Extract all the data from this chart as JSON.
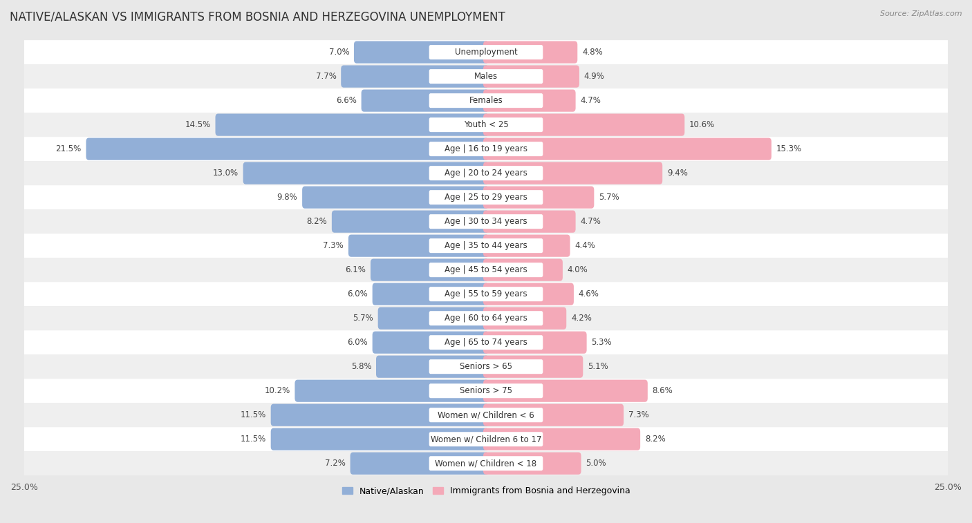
{
  "title": "NATIVE/ALASKAN VS IMMIGRANTS FROM BOSNIA AND HERZEGOVINA UNEMPLOYMENT",
  "source": "Source: ZipAtlas.com",
  "categories": [
    "Unemployment",
    "Males",
    "Females",
    "Youth < 25",
    "Age | 16 to 19 years",
    "Age | 20 to 24 years",
    "Age | 25 to 29 years",
    "Age | 30 to 34 years",
    "Age | 35 to 44 years",
    "Age | 45 to 54 years",
    "Age | 55 to 59 years",
    "Age | 60 to 64 years",
    "Age | 65 to 74 years",
    "Seniors > 65",
    "Seniors > 75",
    "Women w/ Children < 6",
    "Women w/ Children 6 to 17",
    "Women w/ Children < 18"
  ],
  "native_values": [
    7.0,
    7.7,
    6.6,
    14.5,
    21.5,
    13.0,
    9.8,
    8.2,
    7.3,
    6.1,
    6.0,
    5.7,
    6.0,
    5.8,
    10.2,
    11.5,
    11.5,
    7.2
  ],
  "immigrant_values": [
    4.8,
    4.9,
    4.7,
    10.6,
    15.3,
    9.4,
    5.7,
    4.7,
    4.4,
    4.0,
    4.6,
    4.2,
    5.3,
    5.1,
    8.6,
    7.3,
    8.2,
    5.0
  ],
  "native_color": "#92afd7",
  "immigrant_color": "#f4a9b8",
  "row_colors": [
    "#ffffff",
    "#efefef"
  ],
  "background_color": "#e8e8e8",
  "axis_limit": 25.0,
  "bar_height": 0.62,
  "title_fontsize": 12,
  "label_fontsize": 8.5,
  "value_fontsize": 8.5,
  "legend_native": "Native/Alaskan",
  "legend_immigrant": "Immigrants from Bosnia and Herzegovina"
}
